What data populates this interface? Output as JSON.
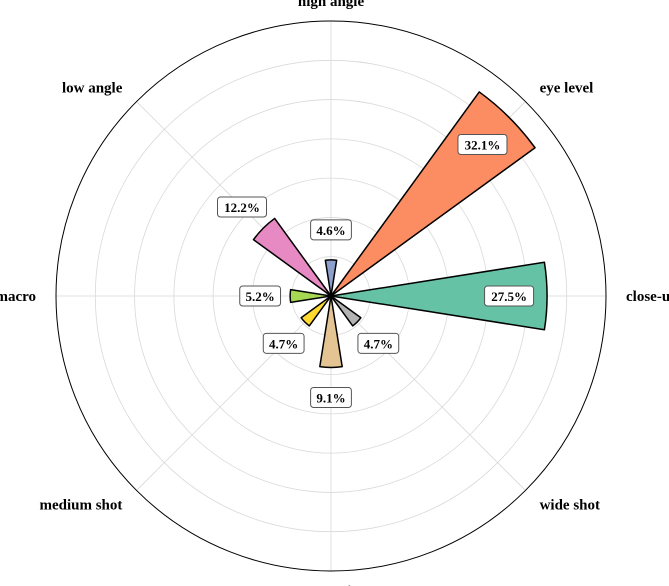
{
  "chart_data": {
    "type": "polar-bar",
    "title": "",
    "categories": [
      "close-up",
      "eye level",
      "high angle",
      "low angle",
      "macro",
      "medium shot",
      "portrait",
      "wide shot"
    ],
    "values": [
      27.5,
      32.1,
      4.6,
      12.2,
      5.2,
      4.7,
      9.1,
      4.7
    ],
    "value_labels": [
      "27.5%",
      "32.1%",
      "4.6%",
      "12.2%",
      "5.2%",
      "4.7%",
      "9.1%",
      "4.7%"
    ],
    "colors": [
      "#66c2a5",
      "#fc8d62",
      "#8da0cb",
      "#e78ac3",
      "#a6d854",
      "#ffd92f",
      "#e5c494",
      "#b3b3b3"
    ],
    "rmax": 35,
    "rings": 7,
    "grid": true,
    "start_angle": "east",
    "direction": "counterclockwise"
  }
}
